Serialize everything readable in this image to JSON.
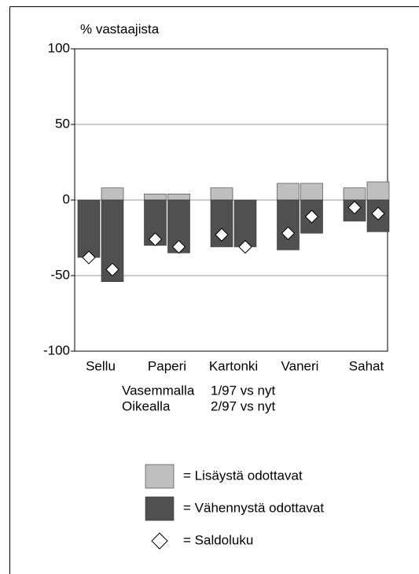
{
  "chart_data": {
    "type": "bar",
    "ylabel": "% vastaajista",
    "categories": [
      "Sellu",
      "Paperi",
      "Kartonki",
      "Vaneri",
      "Sahat"
    ],
    "series": [
      {
        "name": "= Lisäystä odottavat",
        "color": "#bfbfbf",
        "values": [
          [
            0,
            8
          ],
          [
            4,
            4
          ],
          [
            8,
            0
          ],
          [
            11,
            11
          ],
          [
            8,
            12
          ]
        ]
      },
      {
        "name": "= Vähennystä odottavat",
        "color": "#505050",
        "values": [
          [
            -38,
            -54
          ],
          [
            -30,
            -35
          ],
          [
            -31,
            -31
          ],
          [
            -33,
            -22
          ],
          [
            -14,
            -21
          ]
        ]
      },
      {
        "name": "= Saldoluku",
        "color": "#ffffff",
        "marker": "diamond",
        "values": [
          [
            -38,
            -46
          ],
          [
            -26,
            -31
          ],
          [
            -23,
            -31
          ],
          [
            -22,
            -11
          ],
          [
            -5,
            -9
          ]
        ]
      }
    ],
    "notes": [
      [
        "Vasemmalla",
        "1/97 vs nyt"
      ],
      [
        "Oikealla",
        "2/97 vs nyt"
      ]
    ],
    "ylim": [
      -100,
      100
    ],
    "yticks": [
      100,
      50,
      0,
      -50,
      -100
    ],
    "grid": true
  }
}
